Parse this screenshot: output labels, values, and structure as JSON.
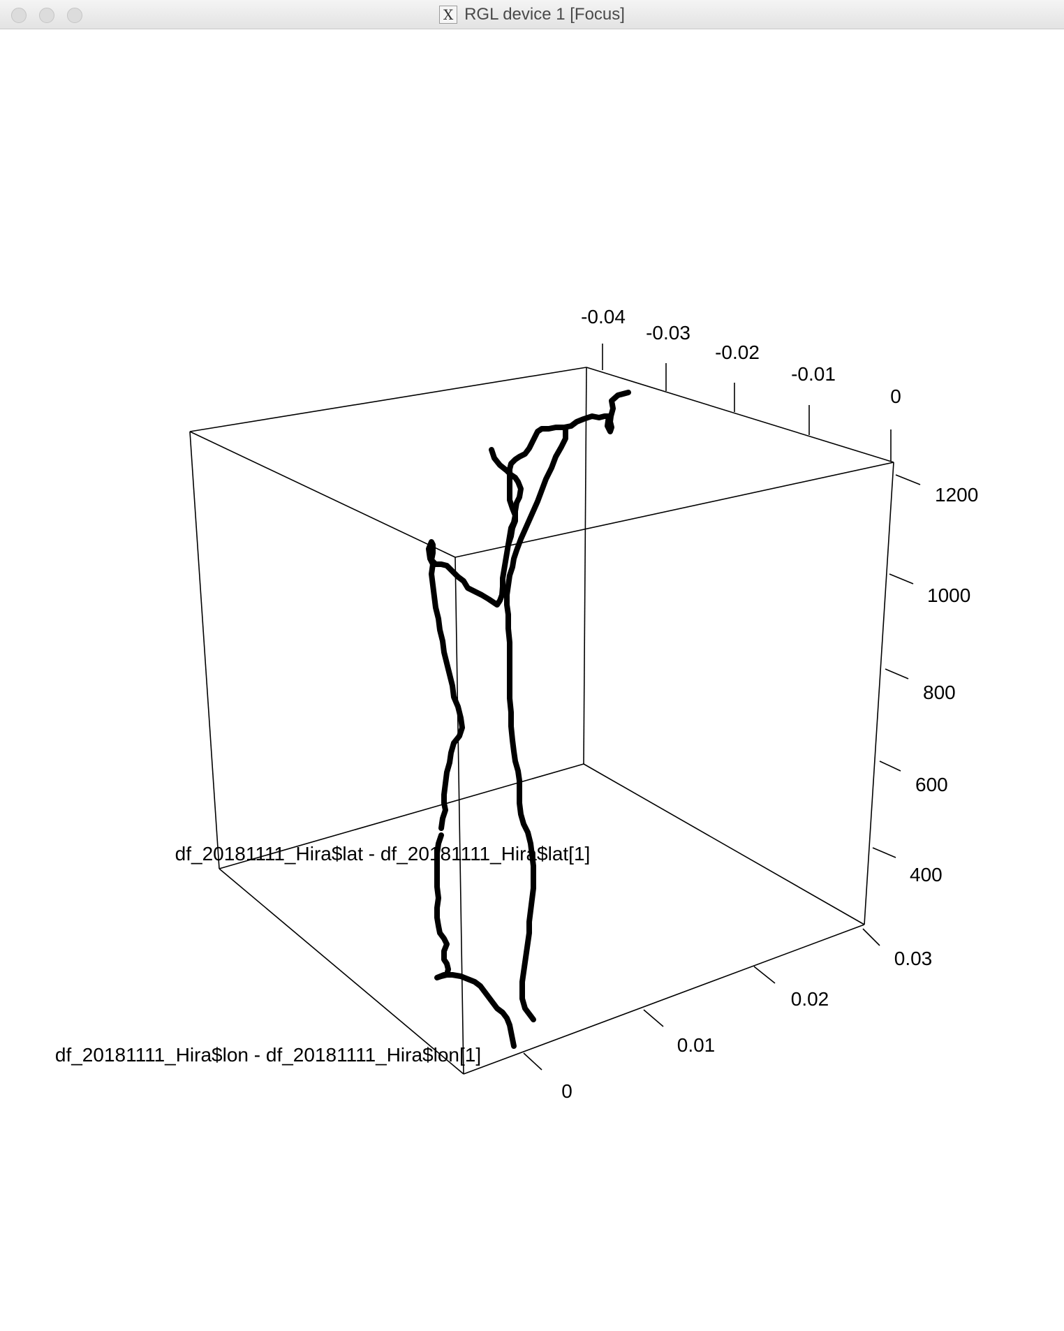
{
  "window": {
    "title": "RGL device 1 [Focus]",
    "icon": "x11-icon",
    "controls": [
      "close-icon",
      "minimize-icon",
      "zoom-icon"
    ]
  },
  "chart_data": {
    "type": "line",
    "xlabel": "df_20181111_Hira$lon - df_20181111_Hira$lon[1]",
    "ylabel": "df_20181111_Hira$lat - df_20181111_Hira$lat[1]",
    "zlabel": "",
    "x_ticks": [
      "0",
      "0.01",
      "0.02",
      "0.03"
    ],
    "y_ticks": [
      "-0.04",
      "-0.03",
      "-0.02",
      "-0.01",
      "0"
    ],
    "z_ticks": [
      "400",
      "600",
      "800",
      "1000",
      "1200"
    ],
    "x_range": [
      0,
      0.035
    ],
    "y_range": [
      -0.045,
      0
    ],
    "z_range": [
      200,
      1300
    ],
    "line_color": "#000000"
  }
}
